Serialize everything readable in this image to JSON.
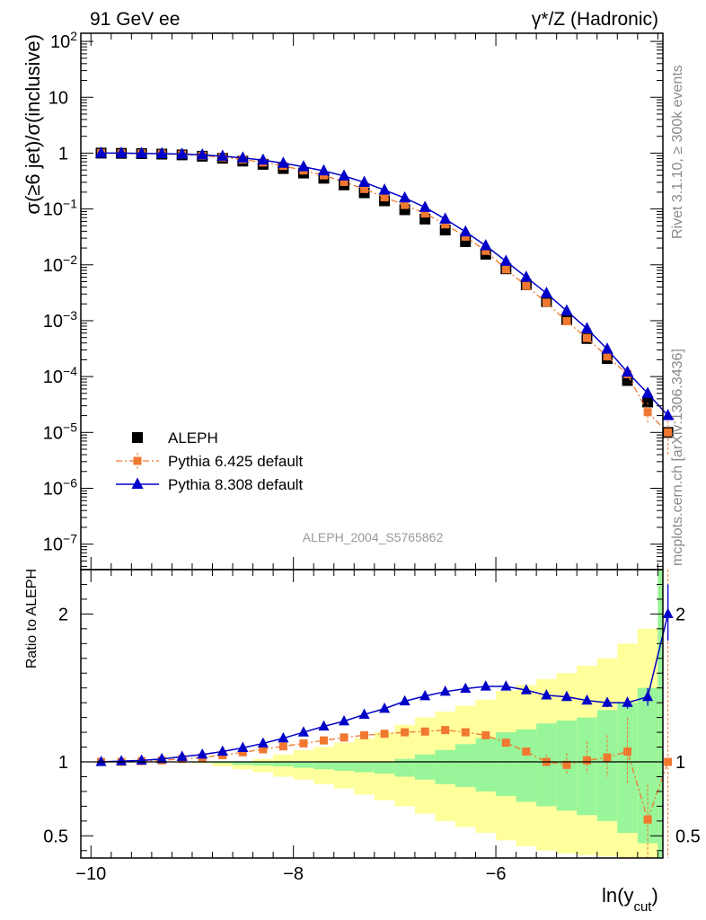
{
  "header": {
    "left": "91 GeV ee",
    "right": "γ*/Z (Hadronic)"
  },
  "side_labels": {
    "version": "Rivet 3.1.10, ≥ 300k events",
    "source": "mcplots.cern.ch [arXiv:1306.3436]"
  },
  "chart_data": [
    {
      "type": "scatter",
      "panel": "main",
      "title": "",
      "xlabel": "",
      "ylabel": "σ(≥6 jet)/σ(inclusive)",
      "yscale": "log",
      "xlim": [
        -10.1,
        -4.35
      ],
      "ylim": [
        3.5e-08,
        140
      ],
      "yticks": [
        1e-07,
        1e-06,
        1e-05,
        0.0001,
        0.001,
        0.01,
        0.1,
        1,
        10,
        100
      ],
      "ytick_labels": [
        "10^-7",
        "10^-6",
        "10^-5",
        "10^-4",
        "10^-3",
        "10^-2",
        "10^-1",
        "1",
        "10",
        "10^2"
      ],
      "watermark": "ALEPH_2004_S5765862",
      "legend_position": "bottom-left",
      "x": [
        -9.9,
        -9.7,
        -9.5,
        -9.3,
        -9.1,
        -8.9,
        -8.7,
        -8.5,
        -8.3,
        -8.1,
        -7.9,
        -7.7,
        -7.5,
        -7.3,
        -7.1,
        -6.9,
        -6.7,
        -6.5,
        -6.3,
        -6.1,
        -5.9,
        -5.7,
        -5.5,
        -5.3,
        -5.1,
        -4.9,
        -4.7,
        -4.5
      ],
      "series": [
        {
          "name": "ALEPH",
          "color": "#000000",
          "marker": "square",
          "values": [
            1.0,
            0.99,
            0.98,
            0.96,
            0.93,
            0.88,
            0.81,
            0.72,
            0.63,
            0.53,
            0.44,
            0.355,
            0.27,
            0.195,
            0.14,
            0.097,
            0.066,
            0.042,
            0.026,
            0.0155,
            0.0085,
            0.0044,
            0.0022,
            0.00105,
            0.00048,
            0.00021,
            8.5e-05,
            3.5e-05
          ]
        },
        {
          "name": "Pythia 6.425 default",
          "color": "#f07830",
          "marker": "square",
          "line": "dashdot",
          "values": [
            1.0,
            0.99,
            0.985,
            0.97,
            0.94,
            0.9,
            0.84,
            0.77,
            0.68,
            0.59,
            0.49,
            0.4,
            0.305,
            0.228,
            0.162,
            0.118,
            0.083,
            0.053,
            0.032,
            0.0178,
            0.0083,
            0.0042,
            0.0021,
            0.00098,
            0.00049,
            0.00023,
            0.00011,
            2.3e-05
          ]
        },
        {
          "name": "Pythia 8.308 default",
          "color": "#0000c8",
          "marker": "triangle",
          "line": "solid",
          "values": [
            1.0,
            1.0,
            0.99,
            0.98,
            0.96,
            0.93,
            0.88,
            0.82,
            0.75,
            0.66,
            0.57,
            0.48,
            0.39,
            0.3,
            0.218,
            0.158,
            0.107,
            0.066,
            0.039,
            0.022,
            0.0116,
            0.006,
            0.0031,
            0.0015,
            0.00072,
            0.00031,
            0.00012,
            5e-05
          ]
        }
      ],
      "last_point": {
        "x": -4.3,
        "aleph": 1e-05,
        "pythia6": 1e-05,
        "pythia8": 2e-05
      }
    },
    {
      "type": "line",
      "panel": "ratio",
      "xlabel": "ln(y_cut)",
      "ylabel": "Ratio to ALEPH",
      "xlim": [
        -10.1,
        -4.35
      ],
      "ylim": [
        0.35,
        2.3
      ],
      "xticks": [
        -10,
        -8,
        -6
      ],
      "xtick_labels": [
        "−10",
        "−8",
        "−6"
      ],
      "yticks": [
        0.5,
        1,
        2
      ],
      "ytick_labels": [
        "0.5",
        "1",
        "2"
      ],
      "reference_line": 1,
      "x": [
        -9.9,
        -9.7,
        -9.5,
        -9.3,
        -9.1,
        -8.9,
        -8.7,
        -8.5,
        -8.3,
        -8.1,
        -7.9,
        -7.7,
        -7.5,
        -7.3,
        -7.1,
        -6.9,
        -6.7,
        -6.5,
        -6.3,
        -6.1,
        -5.9,
        -5.7,
        -5.5,
        -5.3,
        -5.1,
        -4.9,
        -4.7,
        -4.5,
        -4.3
      ],
      "series": [
        {
          "name": "Pythia 6.425 default",
          "color": "#f07830",
          "values": [
            1.0,
            1.0,
            1.005,
            1.01,
            1.02,
            1.03,
            1.045,
            1.065,
            1.085,
            1.105,
            1.125,
            1.145,
            1.165,
            1.18,
            1.19,
            1.2,
            1.205,
            1.215,
            1.2,
            1.18,
            1.13,
            1.07,
            1.0,
            0.98,
            1.01,
            1.03,
            1.07,
            0.61,
            1.0
          ]
        },
        {
          "name": "Pythia 8.308 default",
          "color": "#0000c8",
          "values": [
            1.0,
            1.005,
            1.01,
            1.02,
            1.035,
            1.05,
            1.07,
            1.095,
            1.125,
            1.16,
            1.2,
            1.24,
            1.275,
            1.32,
            1.36,
            1.41,
            1.445,
            1.475,
            1.495,
            1.51,
            1.51,
            1.485,
            1.45,
            1.44,
            1.415,
            1.4,
            1.4,
            1.44,
            2.0
          ]
        }
      ],
      "uncertainty_bands": {
        "x_edges": [
          -10.0,
          -9.8,
          -9.6,
          -9.4,
          -9.2,
          -9.0,
          -8.8,
          -8.6,
          -8.4,
          -8.2,
          -8.0,
          -7.8,
          -7.6,
          -7.4,
          -7.2,
          -7.0,
          -6.8,
          -6.6,
          -6.4,
          -6.2,
          -6.0,
          -5.8,
          -5.6,
          -5.4,
          -5.2,
          -5.0,
          -4.8,
          -4.6,
          -4.4,
          -4.2
        ],
        "inner_color": "#99f599",
        "outer_color": "#ffff9c",
        "inner_up": [
          1.0,
          1.0,
          1.0,
          1.0,
          1.0,
          1.0,
          1.0,
          1.0,
          1.0,
          1.0,
          1.0,
          1.0,
          1.0,
          1.0,
          1.0,
          1.02,
          1.05,
          1.08,
          1.12,
          1.16,
          1.2,
          1.22,
          1.26,
          1.28,
          1.3,
          1.35,
          1.4,
          1.5,
          2.3
        ],
        "inner_down": [
          1.0,
          1.0,
          1.0,
          1.0,
          1.0,
          0.995,
          0.99,
          0.98,
          0.975,
          0.97,
          0.96,
          0.95,
          0.94,
          0.93,
          0.92,
          0.9,
          0.88,
          0.85,
          0.83,
          0.8,
          0.77,
          0.73,
          0.7,
          0.67,
          0.64,
          0.6,
          0.52,
          0.45,
          0.35
        ],
        "outer_up": [
          1.0,
          1.0,
          1.0,
          1.0,
          1.0,
          1.0,
          1.0,
          1.0,
          1.02,
          1.05,
          1.08,
          1.1,
          1.13,
          1.16,
          1.2,
          1.25,
          1.3,
          1.34,
          1.38,
          1.42,
          1.48,
          1.52,
          1.56,
          1.6,
          1.65,
          1.7,
          1.8,
          1.9,
          2.3
        ],
        "outer_down": [
          1.0,
          1.0,
          1.0,
          1.0,
          1.0,
          0.99,
          0.97,
          0.95,
          0.93,
          0.9,
          0.88,
          0.85,
          0.82,
          0.78,
          0.74,
          0.7,
          0.65,
          0.6,
          0.56,
          0.52,
          0.47,
          0.43,
          0.4,
          0.38,
          0.37,
          0.36,
          0.35,
          0.35,
          0.35
        ]
      }
    }
  ]
}
